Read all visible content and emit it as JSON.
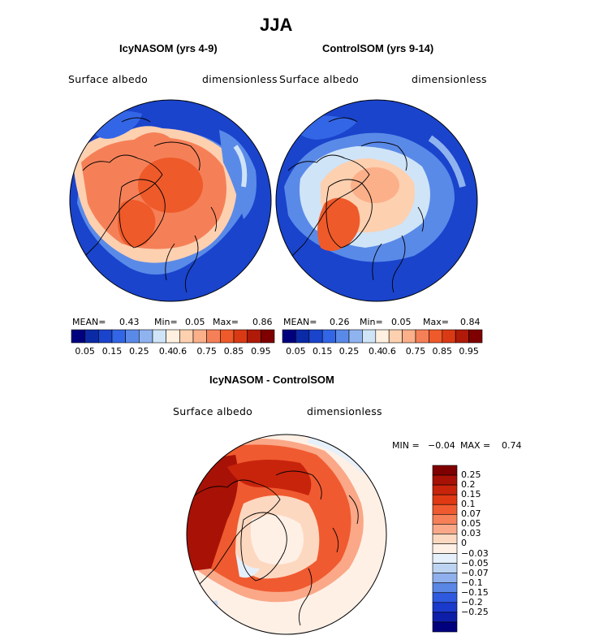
{
  "figure": {
    "title": "JJA",
    "variable_label": "Surface albedo",
    "units_label": "dimensionless"
  },
  "chart_data": [
    {
      "type": "heatmap",
      "projection": "north polar stereographic",
      "title": "IcyNASOM (yrs 4-9)",
      "xlabel": "Surface albedo",
      "ylabel": "dimensionless",
      "stats": {
        "mean_label": "MEAN=",
        "mean": "0.43",
        "min_label": "Min=",
        "min": "0.05",
        "max_label": "Max=",
        "max": "0.86"
      },
      "colorbar": {
        "colors": [
          "#00007f",
          "#0b2aa6",
          "#1a44cc",
          "#3366e6",
          "#5a8ae8",
          "#8fb3ef",
          "#cfe4f7",
          "#fff0e0",
          "#fdd0b0",
          "#fbb08a",
          "#f58058",
          "#ef5a2a",
          "#d93a14",
          "#b01a08",
          "#7f0000"
        ],
        "tick_labels": [
          "0.05",
          "0.15",
          "0.25",
          "0.4",
          "0.6",
          "0.75",
          "0.85",
          "0.95"
        ]
      },
      "field_summary": "High albedo (0.6-0.86) over Arctic Ocean sea ice, Greenland and Canadian Archipelago; low albedo (0.05-0.25) over lower latitudes and continents"
    },
    {
      "type": "heatmap",
      "projection": "north polar stereographic",
      "title": "ControlSOM (yrs 9-14)",
      "xlabel": "Surface albedo",
      "ylabel": "dimensionless",
      "stats": {
        "mean_label": "MEAN=",
        "mean": "0.26",
        "min_label": "Min=",
        "min": "0.05",
        "max_label": "Max=",
        "max": "0.84"
      },
      "colorbar": {
        "colors": [
          "#00007f",
          "#0b2aa6",
          "#1a44cc",
          "#3366e6",
          "#5a8ae8",
          "#8fb3ef",
          "#cfe4f7",
          "#fff0e0",
          "#fdd0b0",
          "#fbb08a",
          "#f58058",
          "#ef5a2a",
          "#d93a14",
          "#b01a08",
          "#7f0000"
        ],
        "tick_labels": [
          "0.05",
          "0.15",
          "0.25",
          "0.4",
          "0.6",
          "0.75",
          "0.85",
          "0.95"
        ]
      },
      "field_summary": "Moderate albedo (0.6-0.75) over central Arctic and Greenland; low albedo elsewhere"
    },
    {
      "type": "heatmap",
      "projection": "north polar stereographic",
      "title": "IcyNASOM - ControlSOM",
      "xlabel": "Surface albedo",
      "ylabel": "dimensionless",
      "stats": {
        "min_label": "MIN =",
        "min": "−0.04",
        "max_label": "MAX =",
        "max": "0.74"
      },
      "colorbar": {
        "colors": [
          "#7f0000",
          "#a81206",
          "#c8240c",
          "#e03a14",
          "#f05a30",
          "#f68058",
          "#faa888",
          "#fdd8c0",
          "#fff0e6",
          "#e6f0fa",
          "#bcd4f2",
          "#8fb0ec",
          "#5a86e6",
          "#2f5ae0",
          "#1a3acc",
          "#0d1ea8",
          "#00007f"
        ],
        "tick_labels": [
          "0.25",
          "0.2",
          "0.15",
          "0.1",
          "0.07",
          "0.05",
          "0.03",
          "0",
          "−0.03",
          "−0.05",
          "−0.07",
          "−0.1",
          "−0.15",
          "−0.2",
          "−0.25"
        ]
      },
      "field_summary": "Positive differences (up to 0.74) over North Atlantic, Nordic Seas, Eurasian margins; near zero over central Arctic and lower latitudes"
    }
  ]
}
